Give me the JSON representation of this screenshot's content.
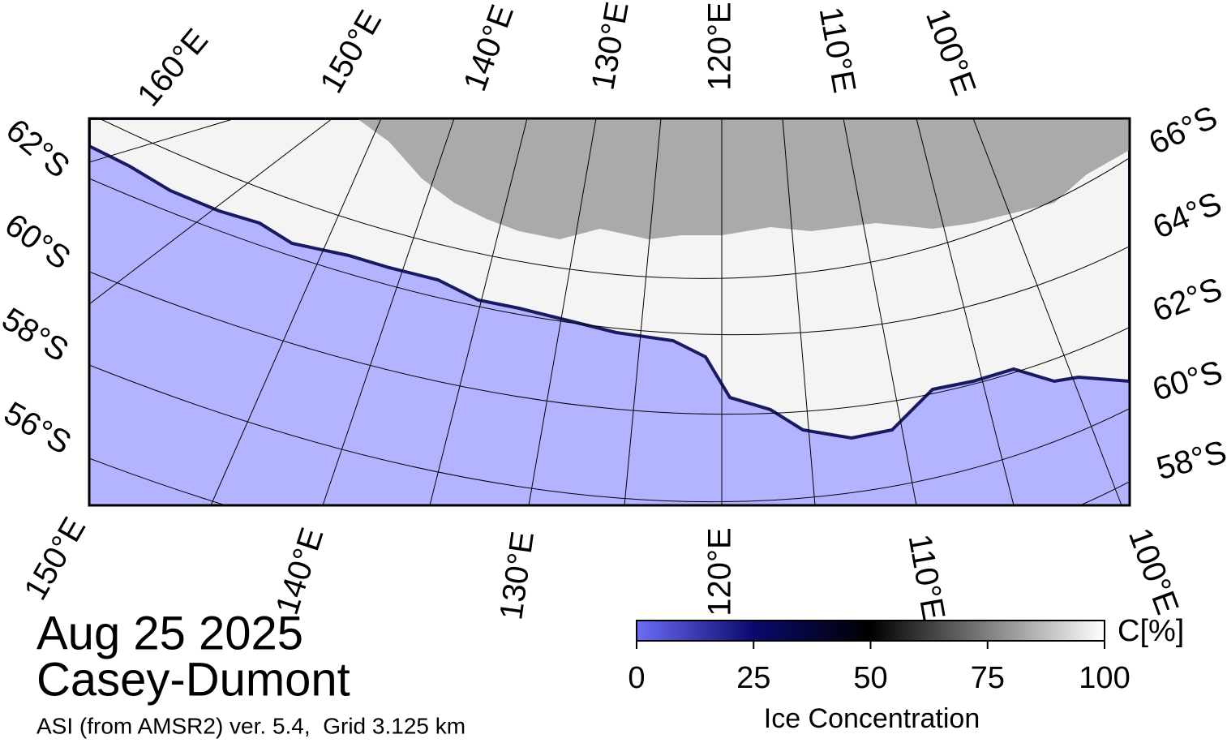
{
  "map": {
    "top_labels": [
      "160°E",
      "150°E",
      "140°E",
      "130°E",
      "120°E",
      "110°E",
      "100°E"
    ],
    "left_labels": [
      "62°S",
      "60°S",
      "58°S",
      "56°S"
    ],
    "right_labels": [
      "66°S",
      "64°S",
      "62°S",
      "60°S",
      "58°S"
    ],
    "bottom_labels": [
      "150°E",
      "140°E",
      "130°E",
      "120°E",
      "110°E",
      "100°E"
    ]
  },
  "info": {
    "date": "Aug 25 2025",
    "region": "Casey-Dumont",
    "source": "ASI (from AMSR2) ver. 5.4,  Grid 3.125 km"
  },
  "colorbar": {
    "lim": [
      0,
      100
    ],
    "ticks": [
      0,
      25,
      50,
      75,
      100
    ],
    "label": "Ice Concentration",
    "unit": "C[%]"
  }
}
